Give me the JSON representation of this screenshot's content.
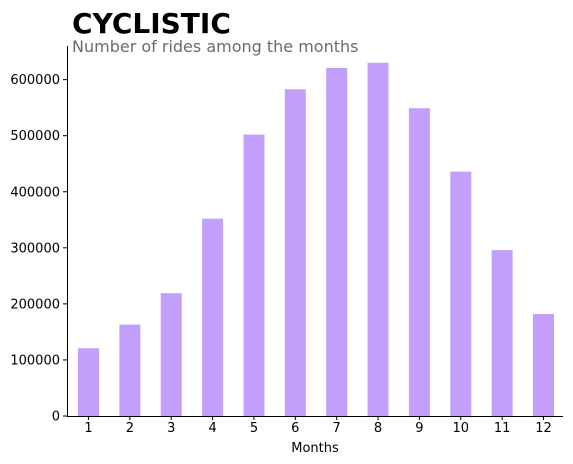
{
  "chart_data": {
    "type": "bar",
    "title": "CYCLISTIC",
    "subtitle": "Number of rides among the months",
    "xlabel": "Months",
    "ylabel": "",
    "categories": [
      "1",
      "2",
      "3",
      "4",
      "5",
      "6",
      "7",
      "8",
      "9",
      "10",
      "11",
      "12"
    ],
    "values": [
      121000,
      163000,
      219000,
      352000,
      502000,
      583000,
      621000,
      630000,
      549000,
      436000,
      296000,
      182000
    ],
    "ylim": [
      0,
      660000
    ],
    "yticks": [
      "0",
      "100000",
      "200000",
      "300000",
      "400000",
      "500000",
      "600000"
    ],
    "bar_color": "#c29ffa",
    "grid": false,
    "legend": "none"
  }
}
